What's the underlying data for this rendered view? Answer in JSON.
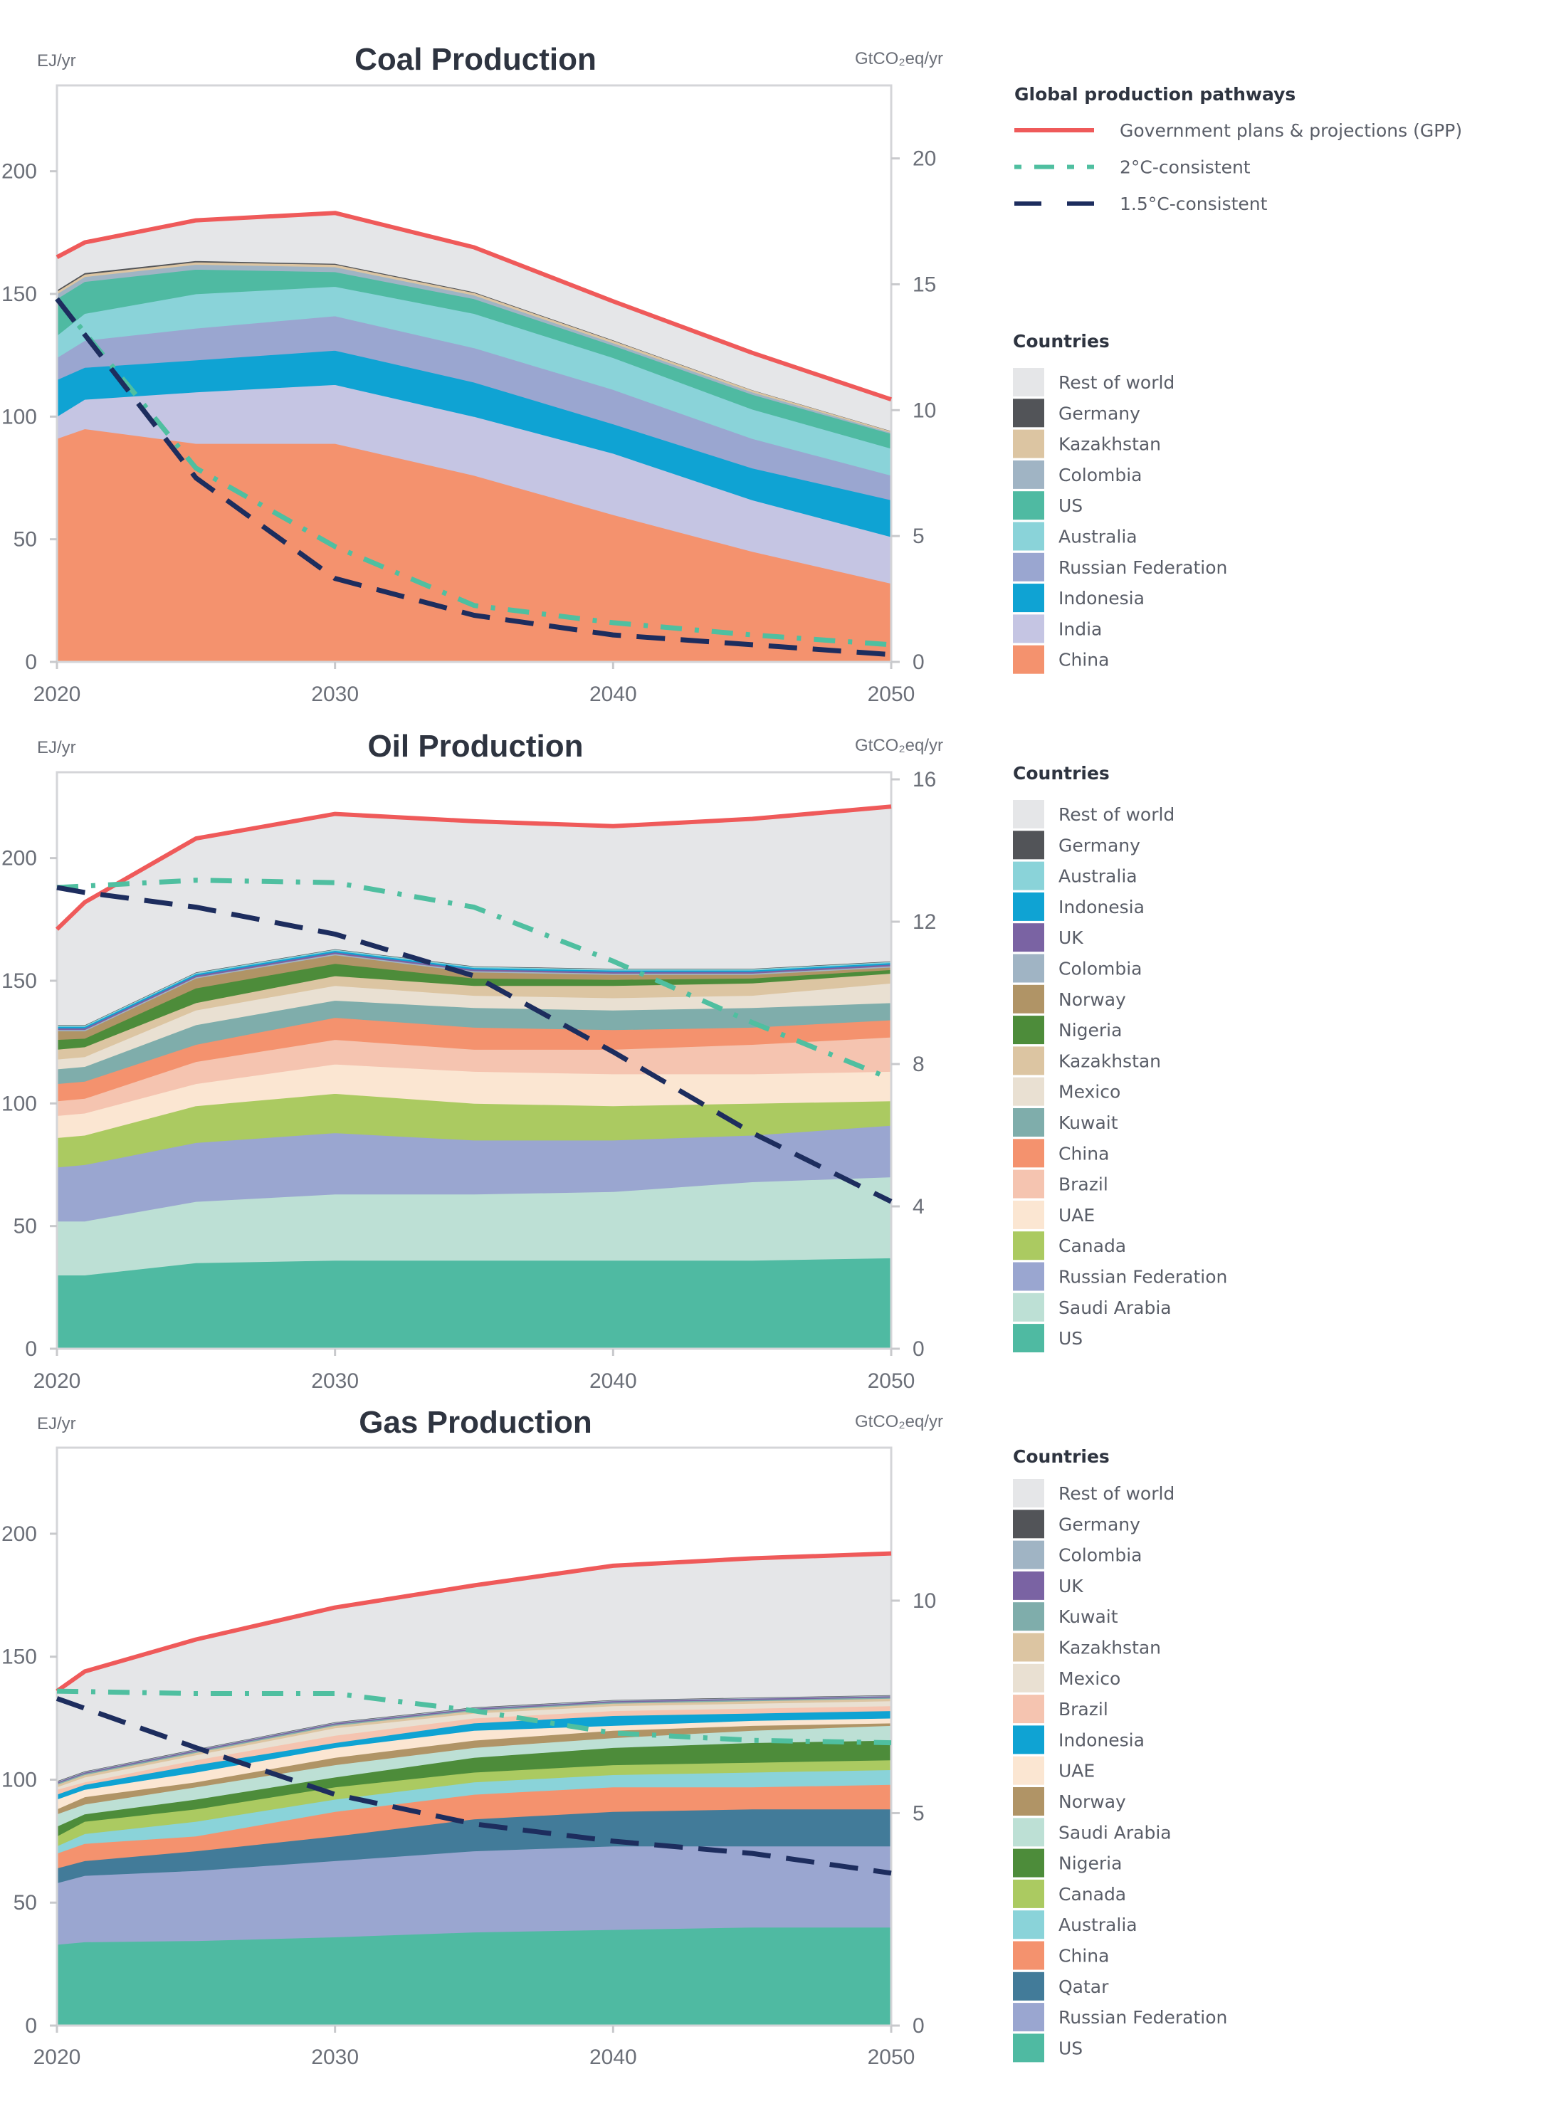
{
  "legend_pathways": {
    "title": "Global production pathways",
    "items": [
      {
        "label": "Government plans & projections (GPP)",
        "color": "#ef5a5a",
        "style": "solid"
      },
      {
        "label": "2°C-consistent",
        "color": "#4fbfa0",
        "style": "dash-dot"
      },
      {
        "label": "1.5°C-consistent",
        "color": "#1d2d5e",
        "style": "dashed"
      }
    ]
  },
  "chart_data": [
    {
      "type": "area",
      "stacked": true,
      "title": "Coal Production",
      "ylabel": "EJ/yr",
      "ylabel_right": "GtCO₂eq/yr",
      "xticks": [
        2020,
        2030,
        2040,
        2050
      ],
      "yticks": [
        0,
        50,
        100,
        150,
        200
      ],
      "yticks_right": [
        0,
        5,
        10,
        15,
        20
      ],
      "xlim": [
        2020,
        2050
      ],
      "ylim": [
        0,
        235
      ],
      "ylim_right": [
        0,
        22.9
      ],
      "legend_title": "Countries",
      "x": [
        2020,
        2021,
        2025,
        2030,
        2035,
        2040,
        2045,
        2050
      ],
      "series": [
        {
          "name": "China",
          "color": "#f4926e",
          "values": [
            91,
            95,
            89,
            89,
            76,
            60,
            45,
            32
          ]
        },
        {
          "name": "India",
          "color": "#c5c5e3",
          "values": [
            9,
            12,
            21,
            24,
            24,
            25,
            21,
            19
          ]
        },
        {
          "name": "Indonesia",
          "color": "#0fa3d3",
          "values": [
            15,
            13,
            13,
            14,
            14,
            12,
            13,
            15
          ]
        },
        {
          "name": "Russian Federation",
          "color": "#9aa6d0",
          "values": [
            9,
            11,
            13,
            14,
            14,
            14,
            12,
            10
          ]
        },
        {
          "name": "Australia",
          "color": "#8ad3d9",
          "values": [
            9,
            11,
            14,
            12,
            14,
            13,
            12,
            11
          ]
        },
        {
          "name": "US",
          "color": "#4fbaa2",
          "values": [
            15,
            13,
            10,
            6,
            6,
            5,
            6,
            6
          ]
        },
        {
          "name": "Colombia",
          "color": "#a0b4c4",
          "values": [
            2,
            2,
            2,
            2,
            1.5,
            1,
            1,
            0.5
          ]
        },
        {
          "name": "Kazakhstan",
          "color": "#dcc5a2",
          "values": [
            1,
            1,
            1,
            1,
            1,
            1,
            0.8,
            0.6
          ]
        },
        {
          "name": "Germany",
          "color": "#525458",
          "values": [
            0.6,
            0.6,
            0.5,
            0.4,
            0.3,
            0.2,
            0.1,
            0.1
          ]
        },
        {
          "name": "Rest of world",
          "color": "#e5e6e8",
          "values": [
            13.4,
            12.4,
            16.5,
            20.6,
            18.2,
            15.8,
            15.1,
            12.8
          ]
        }
      ],
      "lines": [
        {
          "name": "Government plans & projections (GPP)",
          "color": "#ef5a5a",
          "style": "solid",
          "x": [
            2020,
            2021,
            2025,
            2030,
            2035,
            2040,
            2045,
            2050
          ],
          "values": [
            165,
            171,
            180,
            183,
            169,
            147,
            126,
            107
          ]
        },
        {
          "name": "2°C-consistent",
          "color": "#4fbfa0",
          "style": "dash-dot",
          "x": [
            2020,
            2025,
            2030,
            2035,
            2040,
            2045,
            2050
          ],
          "values": [
            148,
            79,
            47,
            23,
            16,
            11,
            7
          ]
        },
        {
          "name": "1.5°C-consistent",
          "color": "#1d2d5e",
          "style": "dashed",
          "x": [
            2020,
            2025,
            2030,
            2035,
            2040,
            2045,
            2050
          ],
          "values": [
            148,
            75,
            34,
            19,
            11,
            7,
            3
          ]
        }
      ]
    },
    {
      "type": "area",
      "stacked": true,
      "title": "Oil Production",
      "ylabel": "EJ/yr",
      "ylabel_right": "GtCO₂eq/yr",
      "xticks": [
        2020,
        2030,
        2040,
        2050
      ],
      "yticks": [
        0,
        50,
        100,
        150,
        200
      ],
      "yticks_right": [
        0,
        4,
        8,
        12,
        16
      ],
      "xlim": [
        2020,
        2050
      ],
      "ylim": [
        0,
        235
      ],
      "ylim_right": [
        0,
        16.2
      ],
      "legend_title": "Countries",
      "x": [
        2020,
        2021,
        2025,
        2030,
        2035,
        2040,
        2045,
        2050
      ],
      "series": [
        {
          "name": "US",
          "color": "#4fbaa2",
          "values": [
            30,
            30,
            35,
            36,
            36,
            36,
            36,
            37
          ]
        },
        {
          "name": "Saudi Arabia",
          "color": "#bde0d5",
          "values": [
            22,
            22,
            25,
            27,
            27,
            28,
            32,
            33
          ]
        },
        {
          "name": "Russian Federation",
          "color": "#9aa6d0",
          "values": [
            22,
            23,
            24,
            25,
            22,
            21,
            19,
            21
          ]
        },
        {
          "name": "Canada",
          "color": "#abca61",
          "values": [
            12,
            12,
            15,
            16,
            15,
            14,
            13,
            10
          ]
        },
        {
          "name": "UAE",
          "color": "#fbe6d2",
          "values": [
            9,
            9,
            9,
            12,
            13,
            13,
            12,
            12
          ]
        },
        {
          "name": "Brazil",
          "color": "#f5c4b0",
          "values": [
            6,
            6,
            9,
            10,
            9,
            10,
            12,
            14
          ]
        },
        {
          "name": "China",
          "color": "#f4926e",
          "values": [
            7,
            7,
            7,
            9,
            9,
            8,
            7,
            7
          ]
        },
        {
          "name": "Kuwait",
          "color": "#7fadab",
          "values": [
            6,
            6,
            8,
            7,
            8,
            8,
            8,
            7
          ]
        },
        {
          "name": "Mexico",
          "color": "#e9e0d2",
          "values": [
            4,
            4,
            6,
            6,
            5,
            5,
            5,
            8
          ]
        },
        {
          "name": "Kazakhstan",
          "color": "#dcc5a2",
          "values": [
            4,
            4,
            3,
            4,
            4,
            5,
            5,
            4
          ]
        },
        {
          "name": "Nigeria",
          "color": "#4d8c3a",
          "values": [
            4,
            3.5,
            6,
            5,
            3,
            2.5,
            2,
            1.5
          ]
        },
        {
          "name": "Norway",
          "color": "#b09466",
          "values": [
            3.5,
            3,
            4,
            3.5,
            2.5,
            2,
            1.5,
            1
          ]
        },
        {
          "name": "Colombia",
          "color": "#a0b4c4",
          "values": [
            0.5,
            0.5,
            0.5,
            0.5,
            0.5,
            0.5,
            0.5,
            0.5
          ]
        },
        {
          "name": "UK",
          "color": "#7a63a3",
          "values": [
            0.7,
            0.7,
            0.7,
            0.7,
            0.7,
            0.7,
            0.7,
            0.7
          ]
        },
        {
          "name": "Indonesia",
          "color": "#0fa3d3",
          "values": [
            0.6,
            0.6,
            0.6,
            0.6,
            0.6,
            0.6,
            0.6,
            0.6
          ]
        },
        {
          "name": "Australia",
          "color": "#8ad3d9",
          "values": [
            0.5,
            0.5,
            0.5,
            0.5,
            0.5,
            0.5,
            0.5,
            0.5
          ]
        },
        {
          "name": "Germany",
          "color": "#525458",
          "values": [
            0.2,
            0.2,
            0.2,
            0.2,
            0.2,
            0.2,
            0.2,
            0.2
          ]
        },
        {
          "name": "Rest of world",
          "color": "#e5e6e8",
          "values": [
            39,
            50,
            54.5,
            55,
            59,
            58,
            61,
            63
          ]
        }
      ],
      "lines": [
        {
          "name": "Government plans & projections (GPP)",
          "color": "#ef5a5a",
          "style": "solid",
          "x": [
            2020,
            2021,
            2025,
            2030,
            2035,
            2040,
            2045,
            2050
          ],
          "values": [
            171,
            182,
            208,
            218,
            215,
            213,
            216,
            221
          ]
        },
        {
          "name": "2°C-consistent",
          "color": "#4fbfa0",
          "style": "dash-dot",
          "x": [
            2020,
            2025,
            2030,
            2035,
            2040,
            2045,
            2050
          ],
          "values": [
            188,
            191,
            190,
            180,
            158,
            133,
            110
          ]
        },
        {
          "name": "1.5°C-consistent",
          "color": "#1d2d5e",
          "style": "dashed",
          "x": [
            2020,
            2021,
            2025,
            2030,
            2035,
            2040,
            2045,
            2050
          ],
          "values": [
            188,
            186,
            180,
            169,
            152,
            121,
            88,
            60
          ]
        }
      ]
    },
    {
      "type": "area",
      "stacked": true,
      "title": "Gas Production",
      "ylabel": "EJ/yr",
      "ylabel_right": "GtCO₂eq/yr",
      "xticks": [
        2020,
        2030,
        2040,
        2050
      ],
      "yticks": [
        0,
        50,
        100,
        150,
        200
      ],
      "yticks_right": [
        0,
        5,
        10
      ],
      "xlim": [
        2020,
        2050
      ],
      "ylim": [
        0,
        235
      ],
      "ylim_right": [
        0,
        13.6
      ],
      "legend_title": "Countries",
      "x": [
        2020,
        2021,
        2025,
        2030,
        2035,
        2040,
        2045,
        2050
      ],
      "series": [
        {
          "name": "US",
          "color": "#4fbaa2",
          "values": [
            33,
            34,
            34.5,
            36,
            38,
            39,
            40,
            40
          ]
        },
        {
          "name": "Russian Federation",
          "color": "#9aa6d0",
          "values": [
            25,
            27,
            28.5,
            31,
            33,
            34,
            33,
            33
          ]
        },
        {
          "name": "Qatar",
          "color": "#427b99",
          "values": [
            6,
            6,
            8,
            10,
            13,
            14,
            15,
            15
          ]
        },
        {
          "name": "China",
          "color": "#f4926e",
          "values": [
            6,
            7,
            6,
            10,
            10,
            10,
            9,
            10
          ]
        },
        {
          "name": "Australia",
          "color": "#8ad3d9",
          "values": [
            3,
            4,
            6,
            5,
            5,
            5,
            6,
            6
          ]
        },
        {
          "name": "Canada",
          "color": "#abca61",
          "values": [
            4,
            5,
            5,
            5,
            4,
            4,
            4,
            4
          ]
        },
        {
          "name": "Nigeria",
          "color": "#4d8c3a",
          "values": [
            4,
            3,
            4,
            4,
            6,
            7,
            8,
            8
          ]
        },
        {
          "name": "Saudi Arabia",
          "color": "#bde0d5",
          "values": [
            5,
            4,
            5,
            5,
            4,
            4,
            5,
            6
          ]
        },
        {
          "name": "Norway",
          "color": "#b09466",
          "values": [
            2,
            3,
            2,
            3,
            3,
            3,
            2,
            1
          ]
        },
        {
          "name": "UAE",
          "color": "#fbe6d2",
          "values": [
            4,
            3,
            4,
            4,
            4,
            2,
            2,
            2
          ]
        },
        {
          "name": "Indonesia",
          "color": "#0fa3d3",
          "values": [
            2,
            2,
            3,
            2,
            3,
            4,
            3,
            3
          ]
        },
        {
          "name": "Brazil",
          "color": "#f5c4b0",
          "values": [
            2,
            1,
            2,
            3,
            2,
            2,
            2,
            2
          ]
        },
        {
          "name": "Mexico",
          "color": "#e9e0d2",
          "values": [
            1,
            2,
            2,
            3,
            2,
            2,
            2,
            2
          ]
        },
        {
          "name": "Kazakhstan",
          "color": "#dcc5a2",
          "values": [
            1,
            1,
            1,
            1,
            1,
            1,
            1,
            1
          ]
        },
        {
          "name": "Kuwait",
          "color": "#7fadab",
          "values": [
            0.5,
            0.5,
            0.5,
            0.5,
            0.5,
            0.5,
            0.5,
            0.5
          ]
        },
        {
          "name": "UK",
          "color": "#7a63a3",
          "values": [
            0.5,
            0.5,
            0.5,
            0.5,
            0.5,
            0.5,
            0.5,
            0.5
          ]
        },
        {
          "name": "Colombia",
          "color": "#a0b4c4",
          "values": [
            0.3,
            0.3,
            0.3,
            0.3,
            0.3,
            0.3,
            0.3,
            0.3
          ]
        },
        {
          "name": "Germany",
          "color": "#525458",
          "values": [
            0.2,
            0.2,
            0.2,
            0.2,
            0.2,
            0.2,
            0.2,
            0.2
          ]
        },
        {
          "name": "Rest of world",
          "color": "#e5e6e8",
          "values": [
            36.5,
            40.5,
            44.5,
            46.5,
            49.5,
            54.5,
            56.5,
            57.5
          ]
        }
      ],
      "lines": [
        {
          "name": "Government plans & projections (GPP)",
          "color": "#ef5a5a",
          "style": "solid",
          "x": [
            2020,
            2021,
            2025,
            2030,
            2035,
            2040,
            2045,
            2050
          ],
          "values": [
            136,
            144,
            157,
            170,
            179,
            187,
            190,
            192
          ]
        },
        {
          "name": "2°C-consistent",
          "color": "#4fbfa0",
          "style": "dash-dot",
          "x": [
            2020,
            2025,
            2030,
            2035,
            2040,
            2045,
            2050
          ],
          "values": [
            136,
            135,
            135,
            128,
            119,
            116,
            115
          ]
        },
        {
          "name": "1.5°C-consistent",
          "color": "#1d2d5e",
          "style": "dashed",
          "x": [
            2020,
            2025,
            2030,
            2035,
            2040,
            2045,
            2050
          ],
          "values": [
            133,
            113,
            94,
            82,
            75,
            70,
            62
          ]
        }
      ]
    }
  ]
}
